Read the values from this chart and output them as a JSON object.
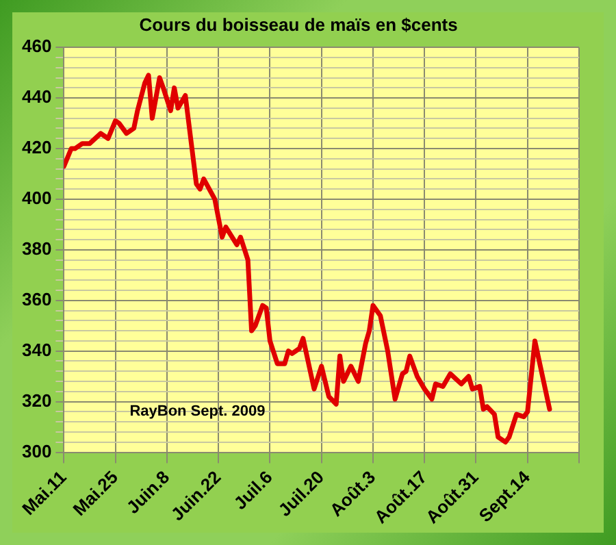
{
  "chart_data": {
    "type": "line",
    "title": "Cours du boisseau de maïs en $cents",
    "x": [
      "--05-11",
      "--05-13",
      "--05-14",
      "--05-16",
      "--05-18",
      "--05-21",
      "--05-23",
      "--05-25",
      "--05-26",
      "--05-28",
      "--05-30",
      "--05-31",
      "--06-02",
      "--06-03",
      "--06-04",
      "--06-06",
      "--06-07",
      "--06-09",
      "--06-10",
      "--06-11",
      "--06-13",
      "--06-16",
      "--06-17",
      "--06-18",
      "--06-21",
      "--06-23",
      "--06-24",
      "--06-27",
      "--06-28",
      "--06-30",
      "--07-01",
      "--07-02",
      "--07-04",
      "--07-05",
      "--07-06",
      "--07-08",
      "--07-10",
      "--07-11",
      "--07-12",
      "--07-14",
      "--07-15",
      "--07-18",
      "--07-20",
      "--07-22",
      "--07-24",
      "--07-25",
      "--07-26",
      "--07-28",
      "--07-30",
      "--08-01",
      "--08-02",
      "--08-03",
      "--08-05",
      "--08-07",
      "--08-09",
      "--08-11",
      "--08-12",
      "--08-13",
      "--08-15",
      "--08-17",
      "--08-19",
      "--08-20",
      "--08-22",
      "--08-24",
      "--08-27",
      "--08-29",
      "--08-30",
      "--09-01",
      "--09-02",
      "--09-03",
      "--09-05",
      "--09-06",
      "--09-08",
      "--09-09",
      "--09-11",
      "--09-13",
      "--09-14",
      "--09-16",
      "--09-20"
    ],
    "series": [
      {
        "color": "#e00000",
        "values": [
          413,
          420,
          420,
          422,
          422,
          426,
          424,
          431,
          430,
          426,
          428,
          435,
          446,
          449,
          432,
          448,
          444,
          435,
          444,
          436,
          441,
          406,
          404,
          408,
          400,
          385,
          389,
          382,
          385,
          376,
          348,
          350,
          358,
          357,
          344,
          335,
          335,
          340,
          339,
          341,
          345,
          325,
          334,
          322,
          319,
          338,
          328,
          334,
          328,
          343,
          348,
          358,
          354,
          340,
          321,
          331,
          332,
          338,
          330,
          325,
          321,
          327,
          326,
          331,
          327,
          330,
          325,
          326,
          317,
          318,
          315,
          306,
          304,
          306,
          315,
          314,
          316,
          344,
          317
        ]
      }
    ],
    "xlim": [
      "--05-11",
      "--09-28"
    ],
    "xticks": [
      {
        "value": "--05-11",
        "label": "Mai.11"
      },
      {
        "value": "--05-25",
        "label": "Mai.25"
      },
      {
        "value": "--06-08",
        "label": "Juin.8"
      },
      {
        "value": "--06-22",
        "label": "Juin.22"
      },
      {
        "value": "--07-06",
        "label": "Juil.6"
      },
      {
        "value": "--07-20",
        "label": "Juil.20"
      },
      {
        "value": "--08-03",
        "label": "Août.3"
      },
      {
        "value": "--08-17",
        "label": "Août.17"
      },
      {
        "value": "--08-31",
        "label": "Août.31"
      },
      {
        "value": "--09-14",
        "label": "Sept.14"
      },
      {
        "value": "--09-28",
        "label": null
      }
    ],
    "ylim": [
      300,
      460
    ],
    "yticks": [
      300,
      {
        "value": 304,
        "label": null
      },
      {
        "value": 308,
        "label": null
      },
      {
        "value": 312,
        "label": null
      },
      {
        "value": 316,
        "label": null
      },
      320,
      {
        "value": 324,
        "label": null
      },
      {
        "value": 328,
        "label": null
      },
      {
        "value": 332,
        "label": null
      },
      {
        "value": 336,
        "label": null
      },
      340,
      {
        "value": 344,
        "label": null
      },
      {
        "value": 348,
        "label": null
      },
      {
        "value": 352,
        "label": null
      },
      {
        "value": 356,
        "label": null
      },
      360,
      {
        "value": 364,
        "label": null
      },
      {
        "value": 368,
        "label": null
      },
      {
        "value": 372,
        "label": null
      },
      {
        "value": 376,
        "label": null
      },
      380,
      {
        "value": 384,
        "label": null
      },
      {
        "value": 388,
        "label": null
      },
      {
        "value": 392,
        "label": null
      },
      {
        "value": 396,
        "label": null
      },
      400,
      {
        "value": 404,
        "label": null
      },
      {
        "value": 408,
        "label": null
      },
      {
        "value": 412,
        "label": null
      },
      {
        "value": 416,
        "label": null
      },
      420,
      {
        "value": 424,
        "label": null
      },
      {
        "value": 428,
        "label": null
      },
      {
        "value": 432,
        "label": null
      },
      {
        "value": 436,
        "label": null
      },
      440,
      {
        "value": 444,
        "label": null
      },
      {
        "value": 448,
        "label": null
      },
      {
        "value": 452,
        "label": null
      },
      {
        "value": 456,
        "label": null
      },
      460
    ],
    "grid": true,
    "marker": "none",
    "line_style": "solid",
    "legend": false,
    "annotations": [
      "RayBon Sept. 2009"
    ]
  }
}
